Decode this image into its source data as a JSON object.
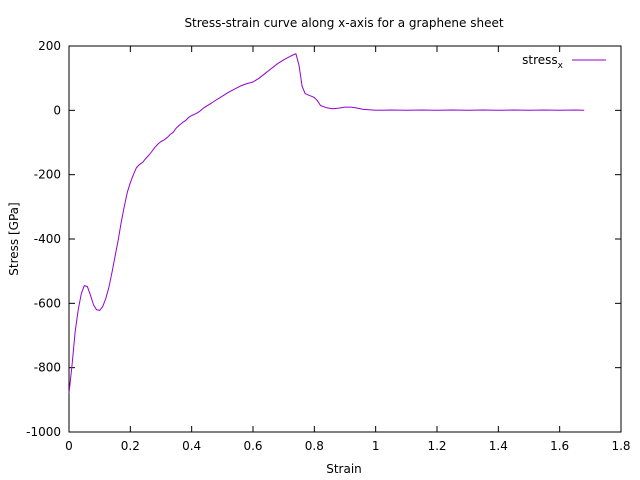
{
  "chart_data": {
    "type": "line",
    "title": "Stress-strain curve along x-axis for a graphene sheet",
    "xlabel": "Strain",
    "ylabel": "Stress [GPa]",
    "xlim": [
      0,
      1.8
    ],
    "ylim": [
      -1000,
      200
    ],
    "x_ticks": [
      0,
      0.2,
      0.4,
      0.6,
      0.8,
      1.0,
      1.2,
      1.4,
      1.6,
      1.8
    ],
    "x_tick_labels": [
      "0",
      "0.2",
      "0.4",
      "0.6",
      "0.8",
      "1",
      "1.2",
      "1.4",
      "1.6",
      "1.8"
    ],
    "y_ticks": [
      -1000,
      -800,
      -600,
      -400,
      -200,
      0,
      200
    ],
    "y_tick_labels": [
      "-1000",
      "-800",
      "-600",
      "-400",
      "-200",
      "0",
      "200"
    ],
    "grid": false,
    "legend_position": "top-right",
    "legend": {
      "entries": [
        {
          "label_main": "stress",
          "label_sub": "x",
          "color": "#9400d3"
        }
      ]
    },
    "series": [
      {
        "color": "#9400d3",
        "x": [
          0,
          0.01,
          0.02,
          0.03,
          0.04,
          0.05,
          0.06,
          0.07,
          0.08,
          0.09,
          0.1,
          0.11,
          0.12,
          0.13,
          0.14,
          0.15,
          0.16,
          0.17,
          0.18,
          0.19,
          0.2,
          0.21,
          0.22,
          0.23,
          0.24,
          0.25,
          0.26,
          0.27,
          0.28,
          0.29,
          0.3,
          0.31,
          0.32,
          0.33,
          0.34,
          0.35,
          0.36,
          0.37,
          0.38,
          0.39,
          0.4,
          0.41,
          0.42,
          0.43,
          0.44,
          0.45,
          0.46,
          0.47,
          0.48,
          0.5,
          0.52,
          0.54,
          0.56,
          0.58,
          0.6,
          0.62,
          0.64,
          0.66,
          0.68,
          0.7,
          0.72,
          0.73,
          0.74,
          0.75,
          0.76,
          0.77,
          0.78,
          0.79,
          0.8,
          0.81,
          0.82,
          0.84,
          0.86,
          0.88,
          0.9,
          0.92,
          0.94,
          0.96,
          0.98,
          1.0,
          1.05,
          1.1,
          1.15,
          1.2,
          1.25,
          1.3,
          1.35,
          1.4,
          1.45,
          1.5,
          1.55,
          1.6,
          1.65,
          1.68
        ],
        "y": [
          -880,
          -790,
          -690,
          -620,
          -570,
          -545,
          -548,
          -575,
          -605,
          -620,
          -622,
          -610,
          -585,
          -550,
          -505,
          -455,
          -405,
          -350,
          -300,
          -255,
          -225,
          -200,
          -178,
          -168,
          -162,
          -150,
          -140,
          -128,
          -115,
          -105,
          -97,
          -92,
          -85,
          -75,
          -68,
          -55,
          -46,
          -38,
          -32,
          -22,
          -16,
          -12,
          -7,
          0,
          8,
          14,
          20,
          26,
          32,
          44,
          56,
          66,
          76,
          83,
          88,
          100,
          115,
          130,
          145,
          157,
          167,
          172,
          176,
          140,
          75,
          52,
          48,
          44,
          40,
          30,
          15,
          8,
          5,
          7,
          10,
          10,
          7,
          3,
          2,
          0,
          1,
          0,
          1,
          0,
          1,
          0,
          1,
          0,
          1,
          0,
          1,
          0,
          1,
          0
        ]
      }
    ]
  }
}
